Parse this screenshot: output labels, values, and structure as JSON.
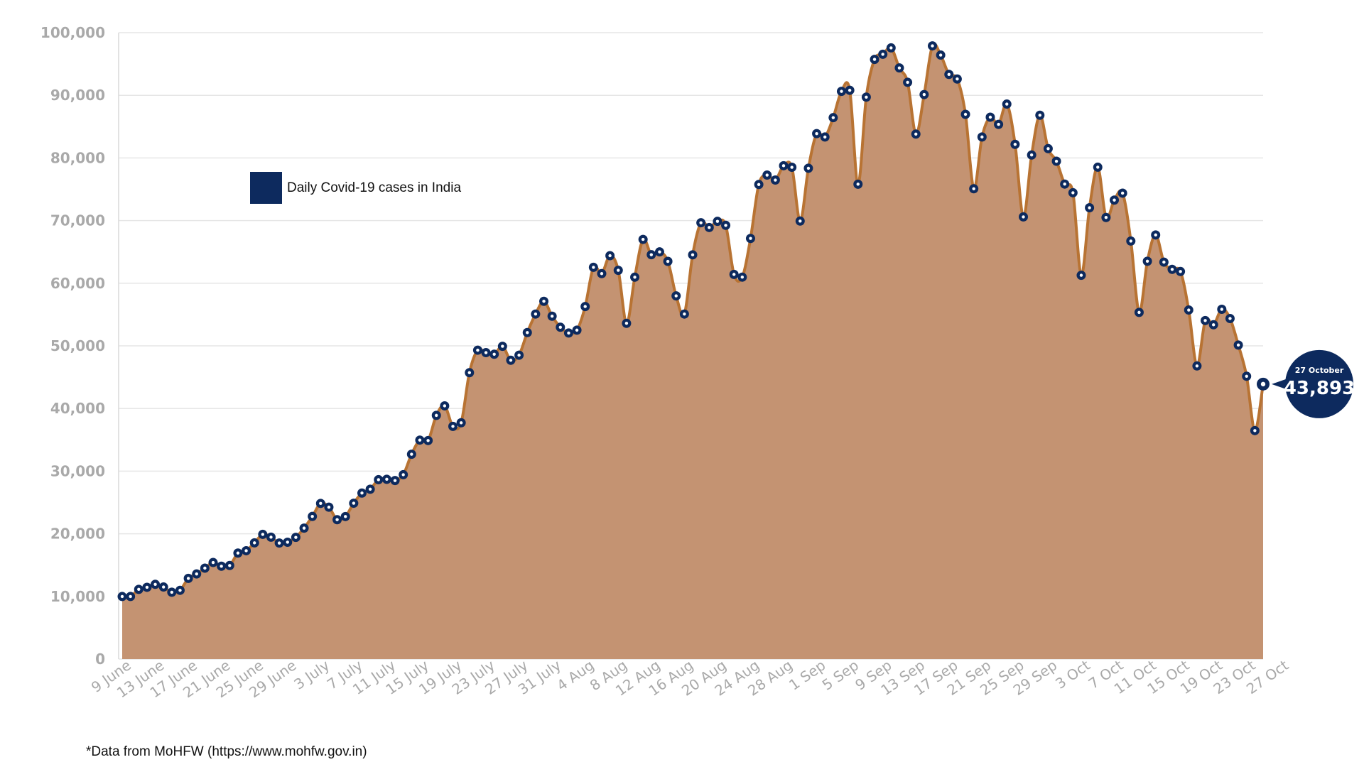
{
  "chart_data": {
    "type": "area",
    "title": "",
    "xlabel": "",
    "ylabel": "",
    "ylim": [
      0,
      100000
    ],
    "y_ticks": [
      0,
      10000,
      20000,
      30000,
      40000,
      50000,
      60000,
      70000,
      80000,
      90000,
      100000
    ],
    "y_tick_labels": [
      "0",
      "10,000",
      "20,000",
      "30,000",
      "40,000",
      "50,000",
      "60,000",
      "70,000",
      "80,000",
      "90,000",
      "100,000"
    ],
    "x_start": "2020-06-09",
    "x_end": "2020-10-27",
    "x_tick_labels": [
      "9 June",
      "13 June",
      "17 June",
      "21 June",
      "25 June",
      "29 June",
      "3 July",
      "7 July",
      "11 July",
      "15 July",
      "19 July",
      "23 July",
      "27 July",
      "31 July",
      "4 Aug",
      "8 Aug",
      "12 Aug",
      "16 Aug",
      "20 Aug",
      "24 Aug",
      "28 Aug",
      "1 Sep",
      "5 Sep",
      "9 Sep",
      "13 Sep",
      "17 Sep",
      "21 Sep",
      "25 Sep",
      "29 Sep",
      "3 Oct",
      "7 Oct",
      "11 Oct",
      "15 Oct",
      "19 Oct",
      "23 Oct",
      "27 Oct"
    ],
    "grid": true,
    "legend_position": "top-left",
    "series": [
      {
        "name": "Daily Covid-19 cases in India",
        "color": "#c49372",
        "line_color": "#b87333",
        "marker_color": "#0d2a5e",
        "values": [
          9987,
          9985,
          11128,
          11458,
          11929,
          11502,
          10667,
          10974,
          12881,
          13586,
          14516,
          15413,
          14821,
          14933,
          16922,
          17296,
          18552,
          19906,
          19459,
          18522,
          18653,
          19428,
          20903,
          22771,
          24850,
          24248,
          22252,
          22752,
          24879,
          26506,
          27114,
          28637,
          28701,
          28498,
          29429,
          32695,
          34956,
          34884,
          38902,
          40425,
          37148,
          37724,
          45720,
          49310,
          48916,
          48661,
          49931,
          47704,
          48513,
          52123,
          55078,
          57118,
          54735,
          52972,
          52050,
          52509,
          56282,
          62538,
          61537,
          64399,
          62064,
          53601,
          60963,
          66999,
          64553,
          65002,
          63490,
          57981,
          55079,
          64531,
          69652,
          68898,
          69878,
          69239,
          61408,
          60975,
          67151,
          75760,
          77266,
          76472,
          78761,
          78512,
          69921,
          78357,
          83883,
          83341,
          86432,
          90632,
          90802,
          75809,
          89706,
          95735,
          96551,
          97570,
          94372,
          92071,
          83809,
          90123,
          97894,
          96424,
          93337,
          92605,
          86961,
          75083,
          83347,
          86508,
          85362,
          88600,
          82170,
          70589,
          80472,
          86821,
          81484,
          79476,
          75829,
          74442,
          61267,
          72049,
          78524,
          70496,
          73272,
          74383,
          66732,
          55342,
          63509,
          67708,
          63371,
          62212,
          61871,
          55722,
          46791,
          54044,
          53370,
          55838,
          54366,
          50129,
          45149,
          36470,
          43893
        ]
      }
    ],
    "annotation": {
      "label": "27 October",
      "value": "43,893"
    }
  },
  "legend": {
    "label": "Daily Covid-19 cases in India",
    "swatch_color": "#0d2a5e"
  },
  "footnote": "*Data from MoHFW (https://www.mohfw.gov.in)"
}
